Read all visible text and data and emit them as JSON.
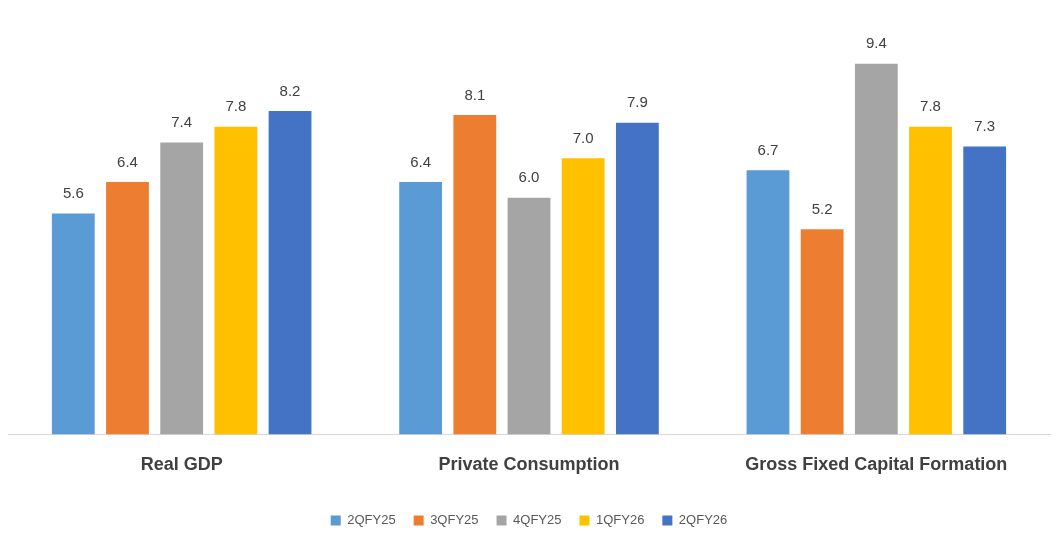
{
  "chart_data": {
    "type": "bar",
    "categories": [
      "Real GDP",
      "Private Consumption",
      "Gross Fixed Capital Formation"
    ],
    "legend": "bottom",
    "series": [
      {
        "name": "2QFY25",
        "color": "#5b9bd5",
        "values": [
          5.6,
          6.4,
          6.7
        ],
        "value_labels": [
          "5.6",
          "6.4",
          "6.7"
        ]
      },
      {
        "name": "3QFY25",
        "color": "#ed7d31",
        "values": [
          6.4,
          8.1,
          5.2
        ],
        "value_labels": [
          "6.4",
          "8.1",
          "5.2"
        ]
      },
      {
        "name": "4QFY25",
        "color": "#a5a5a5",
        "values": [
          7.4,
          6.0,
          9.4
        ],
        "value_labels": [
          "7.4",
          "6.0",
          "9.4"
        ]
      },
      {
        "name": "1QFY26",
        "color": "#ffc000",
        "values": [
          7.8,
          7.0,
          7.8
        ],
        "value_labels": [
          "7.8",
          "7.0",
          "7.8"
        ]
      },
      {
        "name": "2QFY26",
        "color": "#4472c4",
        "values": [
          8.2,
          7.9,
          7.3
        ],
        "value_labels": [
          "8.2",
          "7.9",
          "7.3"
        ]
      }
    ]
  }
}
